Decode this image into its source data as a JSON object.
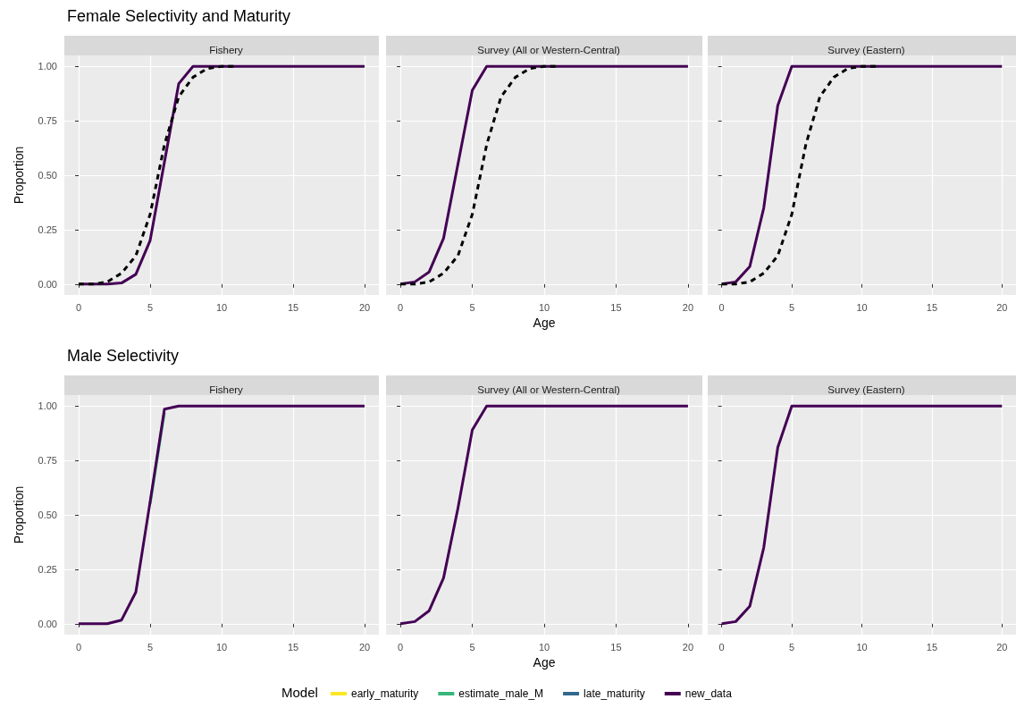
{
  "chart_data": [
    {
      "type": "line",
      "title": "Female Selectivity and Maturity",
      "subtitle": "Fishery",
      "ylabel": "Proportion",
      "x": [
        0,
        1,
        2,
        3,
        4,
        5,
        6,
        7,
        8,
        9,
        10,
        11,
        12,
        13,
        14,
        15,
        16,
        17,
        18,
        19,
        20
      ],
      "xlim": [
        -1,
        21
      ],
      "xticks": [
        0,
        5,
        10,
        15,
        20
      ],
      "ylim": [
        -0.05,
        1.05
      ],
      "yticks": [
        {
          "value": 0,
          "label": "0.00"
        },
        {
          "value": 0.25,
          "label": "0.25"
        },
        {
          "value": 0.5,
          "label": "0.50"
        },
        {
          "value": 0.75,
          "label": "0.75"
        },
        {
          "value": 1,
          "label": "1.00"
        }
      ],
      "grid": true,
      "line_style": "solid",
      "series": [
        {
          "color": "#440154",
          "values": [
            0,
            0,
            0,
            0.005,
            0.045,
            0.2,
            0.56,
            0.92,
            1,
            1,
            1,
            1,
            1,
            1,
            1,
            1,
            1,
            1,
            1,
            1,
            1
          ]
        },
        {
          "color": "#000000",
          "line_style": "dashed",
          "values": [
            0,
            0,
            0.01,
            0.05,
            0.13,
            0.32,
            0.64,
            0.86,
            0.95,
            0.99,
            1,
            1,
            null,
            null,
            null,
            null,
            null,
            null,
            null,
            null,
            null
          ]
        }
      ]
    },
    {
      "type": "line",
      "subtitle": "Survey (All or Western-Central)",
      "xlabel": "Age",
      "x": [
        0,
        1,
        2,
        3,
        4,
        5,
        6,
        7,
        8,
        9,
        10,
        11,
        12,
        13,
        14,
        15,
        16,
        17,
        18,
        19,
        20
      ],
      "xlim": [
        -1,
        21
      ],
      "xticks": [
        0,
        5,
        10,
        15,
        20
      ],
      "ylim": [
        -0.05,
        1.05
      ],
      "yticks": [
        {
          "value": 0,
          "label": null
        },
        {
          "value": 0.25,
          "label": null
        },
        {
          "value": 0.5,
          "label": null
        },
        {
          "value": 0.75,
          "label": null
        },
        {
          "value": 1,
          "label": null
        }
      ],
      "grid": true,
      "tick_labels": "x",
      "line_style": "solid",
      "series": [
        {
          "color": "#440154",
          "values": [
            0,
            0.01,
            0.056,
            0.21,
            0.55,
            0.89,
            1,
            1,
            1,
            1,
            1,
            1,
            1,
            1,
            1,
            1,
            1,
            1,
            1,
            1,
            1
          ]
        },
        {
          "color": "#000000",
          "line_style": "dashed",
          "values": [
            0,
            0,
            0.01,
            0.05,
            0.13,
            0.32,
            0.64,
            0.86,
            0.95,
            0.99,
            1,
            1,
            null,
            null,
            null,
            null,
            null,
            null,
            null,
            null,
            null
          ]
        }
      ]
    },
    {
      "type": "line",
      "subtitle": "Survey (Eastern)",
      "x": [
        0,
        1,
        2,
        3,
        4,
        5,
        6,
        7,
        8,
        9,
        10,
        11,
        12,
        13,
        14,
        15,
        16,
        17,
        18,
        19,
        20
      ],
      "xlim": [
        -1,
        21
      ],
      "xticks": [
        0,
        5,
        10,
        15,
        20
      ],
      "ylim": [
        -0.05,
        1.05
      ],
      "yticks": [
        {
          "value": 0,
          "label": null
        },
        {
          "value": 0.25,
          "label": null
        },
        {
          "value": 0.5,
          "label": null
        },
        {
          "value": 0.75,
          "label": null
        },
        {
          "value": 1,
          "label": null
        }
      ],
      "grid": true,
      "tick_labels": "x",
      "line_style": "solid",
      "series": [
        {
          "color": "#440154",
          "values": [
            0,
            0.01,
            0.08,
            0.35,
            0.82,
            1,
            1,
            1,
            1,
            1,
            1,
            1,
            1,
            1,
            1,
            1,
            1,
            1,
            1,
            1,
            1
          ]
        },
        {
          "color": "#000000",
          "line_style": "dashed",
          "values": [
            0,
            0,
            0.01,
            0.05,
            0.13,
            0.32,
            0.64,
            0.86,
            0.95,
            0.99,
            1,
            1,
            null,
            null,
            null,
            null,
            null,
            null,
            null,
            null,
            null
          ]
        }
      ]
    },
    {
      "type": "line",
      "title": "Male Selectivity",
      "subtitle": "Fishery",
      "ylabel": "Proportion",
      "x": [
        0,
        1,
        2,
        3,
        4,
        5,
        6,
        7,
        8,
        9,
        10,
        11,
        12,
        13,
        14,
        15,
        16,
        17,
        18,
        19,
        20
      ],
      "xlim": [
        -1,
        21
      ],
      "xticks": [
        0,
        5,
        10,
        15,
        20
      ],
      "ylim": [
        -0.05,
        1.05
      ],
      "yticks": [
        {
          "value": 0,
          "label": "0.00"
        },
        {
          "value": 0.25,
          "label": "0.25"
        },
        {
          "value": 0.5,
          "label": "0.50"
        },
        {
          "value": 0.75,
          "label": "0.75"
        },
        {
          "value": 1,
          "label": "1.00"
        }
      ],
      "grid": true,
      "line_style": "solid",
      "series": [
        {
          "color": "#35b779",
          "values": [
            null,
            null,
            null,
            null,
            null,
            0.55,
            0.97,
            null,
            null,
            null,
            null,
            null,
            null,
            null,
            null,
            null,
            null,
            null,
            null,
            null,
            null
          ]
        },
        {
          "color": "#440154",
          "values": [
            0,
            0,
            0,
            0.017,
            0.145,
            0.56,
            0.985,
            1,
            1,
            1,
            1,
            1,
            1,
            1,
            1,
            1,
            1,
            1,
            1,
            1,
            1
          ]
        }
      ]
    },
    {
      "type": "line",
      "subtitle": "Survey (All or Western-Central)",
      "xlabel": "Age",
      "x": [
        0,
        1,
        2,
        3,
        4,
        5,
        6,
        7,
        8,
        9,
        10,
        11,
        12,
        13,
        14,
        15,
        16,
        17,
        18,
        19,
        20
      ],
      "xlim": [
        -1,
        21
      ],
      "xticks": [
        0,
        5,
        10,
        15,
        20
      ],
      "ylim": [
        -0.05,
        1.05
      ],
      "yticks": [
        {
          "value": 0,
          "label": null
        },
        {
          "value": 0.25,
          "label": null
        },
        {
          "value": 0.5,
          "label": null
        },
        {
          "value": 0.75,
          "label": null
        },
        {
          "value": 1,
          "label": null
        }
      ],
      "grid": true,
      "tick_labels": "x",
      "line_style": "solid",
      "legend": "bottom",
      "legend_title": "Model",
      "series": [
        {
          "name": "early_maturity",
          "color": "#fde725",
          "values": [
            null,
            null,
            null,
            null,
            null,
            null,
            null,
            null,
            null,
            null,
            null,
            null,
            null,
            null,
            null,
            null,
            null,
            null,
            null,
            null,
            null
          ]
        },
        {
          "name": "estimate_male_M",
          "color": "#35b779",
          "values": [
            null,
            null,
            null,
            null,
            null,
            null,
            null,
            null,
            null,
            null,
            null,
            null,
            null,
            null,
            null,
            null,
            null,
            null,
            null,
            null,
            null
          ]
        },
        {
          "name": "late_maturity",
          "color": "#31688e",
          "values": [
            null,
            null,
            null,
            null,
            null,
            null,
            null,
            null,
            null,
            null,
            null,
            null,
            null,
            null,
            null,
            null,
            null,
            null,
            null,
            null,
            null
          ]
        },
        {
          "name": "new_data",
          "color": "#440154",
          "values": [
            0,
            0.01,
            0.06,
            0.21,
            0.53,
            0.89,
            1,
            1,
            1,
            1,
            1,
            1,
            1,
            1,
            1,
            1,
            1,
            1,
            1,
            1,
            1
          ]
        }
      ]
    },
    {
      "type": "line",
      "subtitle": "Survey (Eastern)",
      "x": [
        0,
        1,
        2,
        3,
        4,
        5,
        6,
        7,
        8,
        9,
        10,
        11,
        12,
        13,
        14,
        15,
        16,
        17,
        18,
        19,
        20
      ],
      "xlim": [
        -1,
        21
      ],
      "xticks": [
        0,
        5,
        10,
        15,
        20
      ],
      "ylim": [
        -0.05,
        1.05
      ],
      "yticks": [
        {
          "value": 0,
          "label": null
        },
        {
          "value": 0.25,
          "label": null
        },
        {
          "value": 0.5,
          "label": null
        },
        {
          "value": 0.75,
          "label": null
        },
        {
          "value": 1,
          "label": null
        }
      ],
      "grid": true,
      "tick_labels": "x",
      "line_style": "solid",
      "series": [
        {
          "color": "#440154",
          "values": [
            0,
            0.01,
            0.08,
            0.35,
            0.81,
            1,
            1,
            1,
            1,
            1,
            1,
            1,
            1,
            1,
            1,
            1,
            1,
            1,
            1,
            1,
            1
          ]
        }
      ]
    }
  ]
}
